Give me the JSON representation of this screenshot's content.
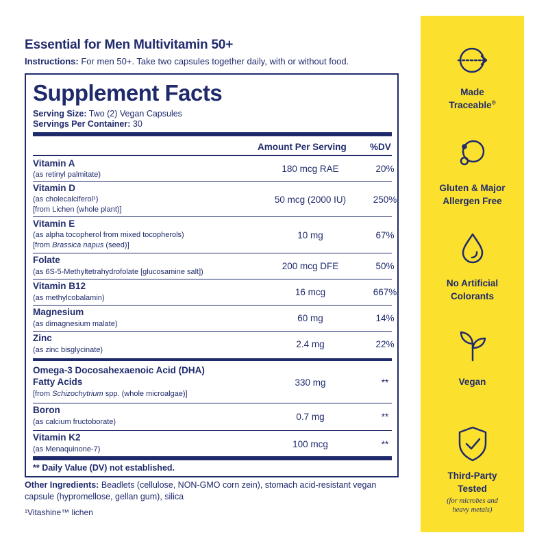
{
  "header": {
    "title": "Essential for Men Multivitamin 50+",
    "instructions_label": "Instructions:",
    "instructions_text": " For men 50+. Take two capsules together daily, with or without food."
  },
  "facts": {
    "title": "Supplement Facts",
    "serving_size_label": "Serving Size:",
    "serving_size_value": " Two (2) Vegan Capsules",
    "servings_label": "Servings Per Container:",
    "servings_value": " 30",
    "col_amount": "Amount Per Serving",
    "col_dv": "%DV",
    "rows": [
      {
        "name": "Vitamin A",
        "sub1": "(as retinyl palmitate)",
        "amount": "180 mcg RAE",
        "dv": "20%"
      },
      {
        "name": "Vitamin D",
        "sub1": "(as cholecalciferol¹)",
        "sub2": "[from Lichen (whole plant)]",
        "amount": "50 mcg (2000 IU)",
        "dv": "250%"
      },
      {
        "name": "Vitamin E",
        "sub1": "(as alpha tocopherol from mixed tocopherols)",
        "sub2_pre": "[from ",
        "sub2_italic": "Brassica napus",
        "sub2_post": " (seed)]",
        "amount": "10 mg",
        "dv": "67%"
      },
      {
        "name": "Folate",
        "sub1": "(as 6S-5-Methyltetrahydrofolate [glucosamine salt])",
        "amount": "200 mcg DFE",
        "dv": "50%"
      },
      {
        "name": "Vitamin B12",
        "sub1": "(as methylcobalamin)",
        "amount": "16 mcg",
        "dv": "667%"
      },
      {
        "name": "Magnesium",
        "sub1": "(as dimagnesium malate)",
        "amount": "60 mg",
        "dv": "14%"
      },
      {
        "name": "Zinc",
        "sub1": "(as zinc bisglycinate)",
        "amount": "2.4 mg",
        "dv": "22%"
      },
      {
        "name": "Omega-3 Docosahexaenoic Acid (DHA)",
        "name2": "Fatty Acids",
        "sub_pre": "[from ",
        "sub_italic": "Schizochytrium",
        "sub_post": " spp. (whole microalgae)]",
        "amount": "330 mg",
        "dv": "**"
      },
      {
        "name": "Boron",
        "sub1": "(as calcium fructoborate)",
        "amount": "0.7 mg",
        "dv": "**"
      },
      {
        "name": "Vitamin K2",
        "sub1": "(as Menaquinone-7)",
        "amount": "100 mcg",
        "dv": "**"
      }
    ],
    "dv_note": "** Daily Value (DV) not established."
  },
  "other_ingredients": {
    "label": "Other Ingredients:",
    "text": " Beadlets (cellulose, NON-GMO corn zein), stomach acid-resistant vegan capsule (hypromellose, gellan gum), silica"
  },
  "footnote": "¹Vitashine™ lichen",
  "badges": {
    "panel_color": "#fbe02e",
    "text_color": "#1f2a6b",
    "items": [
      {
        "icon": "traceable-arrow-icon",
        "line1": "Made",
        "line2": "Traceable",
        "mark": "®"
      },
      {
        "icon": "allergen-free-icon",
        "line1": "Gluten & Major",
        "line2": "Allergen Free"
      },
      {
        "icon": "drop-icon",
        "line1": "No Artificial",
        "line2": "Colorants"
      },
      {
        "icon": "sprout-icon",
        "line1": "Vegan"
      },
      {
        "icon": "shield-check-icon",
        "line1": "Third-Party",
        "line2": "Tested",
        "sub1": "(for microbes and",
        "sub2": "heavy metals)"
      }
    ]
  }
}
